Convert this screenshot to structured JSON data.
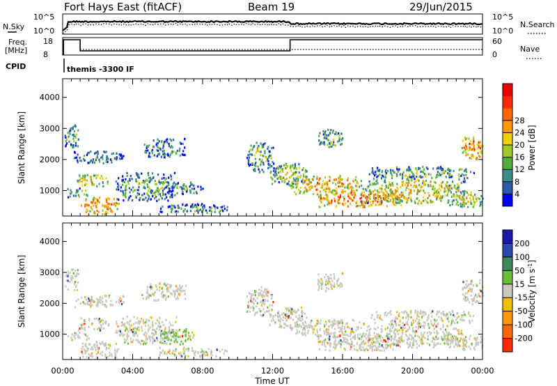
{
  "header": {
    "station": "Fort Hays East (fitACF)",
    "beam": "Beam 19",
    "date": "29/Jun/2015"
  },
  "status_panels": {
    "nsky_label": "N.Sky",
    "nsky_ticks": [
      "10^5",
      "10^0"
    ],
    "nsearch_label": "N.Search",
    "nsearch_right_ticks": [
      "10^5",
      "10^0"
    ],
    "freq_label": "Freq.",
    "freq_unit": "[MHz]",
    "freq_ticks": [
      "18",
      "8"
    ],
    "nave_label": "Nave",
    "nave_ticks": [
      "60",
      "0"
    ],
    "cpid_label": "CPID",
    "cpid_text": "themis -3300 IF"
  },
  "x_axis": {
    "ticks": [
      "00:00",
      "04:00",
      "08:00",
      "12:00",
      "16:00",
      "20:00",
      "00:00"
    ],
    "label": "Time UT"
  },
  "chart_data": [
    {
      "type": "heatmap",
      "name": "power-panel",
      "ylabel": "Slant Range [km]",
      "yticks": [
        1000,
        2000,
        3000,
        4000
      ],
      "ylim": [
        180,
        4600
      ],
      "xlim_hours": [
        0,
        24
      ],
      "colorbar_label": "Power [dB]",
      "colorbar_ticks": [
        4,
        8,
        12,
        16,
        20,
        24,
        28
      ],
      "colorbar_colors": [
        "#0000ff",
        "#2a5aa8",
        "#3e8c8c",
        "#4fae3e",
        "#9ecb2a",
        "#f0d000",
        "#ff9a00",
        "#ff6a00",
        "#ff2a00",
        "#e60000"
      ],
      "regions": [
        {
          "t0": 0.1,
          "t1": 0.9,
          "r0": 2400,
          "r1": 3150,
          "level": 0.35
        },
        {
          "t0": 0.6,
          "t1": 3.5,
          "r0": 1900,
          "r1": 2300,
          "level": 0.3
        },
        {
          "t0": 0.8,
          "t1": 2.6,
          "r0": 1150,
          "r1": 1550,
          "level": 0.55
        },
        {
          "t0": 0.2,
          "t1": 1.5,
          "r0": 800,
          "r1": 1100,
          "level": 0.4
        },
        {
          "t0": 1.0,
          "t1": 3.2,
          "r0": 250,
          "r1": 800,
          "level": 0.7
        },
        {
          "t0": 3.0,
          "t1": 6.5,
          "r0": 700,
          "r1": 1600,
          "level": 0.35
        },
        {
          "t0": 4.5,
          "t1": 7.0,
          "r0": 2100,
          "r1": 2700,
          "level": 0.3
        },
        {
          "t0": 6.0,
          "t1": 8.0,
          "r0": 900,
          "r1": 1300,
          "level": 0.3
        },
        {
          "t0": 5.5,
          "t1": 9.5,
          "r0": 300,
          "r1": 600,
          "level": 0.3
        },
        {
          "t0": 10.5,
          "t1": 12.0,
          "r0": 1600,
          "r1": 2600,
          "level": 0.4
        },
        {
          "t0": 11.8,
          "t1": 14.0,
          "r0": 1200,
          "r1": 1900,
          "level": 0.45
        },
        {
          "t0": 13.0,
          "t1": 17.0,
          "r0": 900,
          "r1": 1500,
          "level": 0.65
        },
        {
          "t0": 14.5,
          "t1": 19.5,
          "r0": 500,
          "r1": 1050,
          "level": 0.75
        },
        {
          "t0": 17.0,
          "t1": 23.0,
          "r0": 600,
          "r1": 1400,
          "level": 0.55
        },
        {
          "t0": 17.5,
          "t1": 23.5,
          "r0": 1400,
          "r1": 1800,
          "level": 0.4
        },
        {
          "t0": 22.8,
          "t1": 24.0,
          "r0": 2000,
          "r1": 2800,
          "level": 0.75
        },
        {
          "t0": 22.0,
          "t1": 24.0,
          "r0": 500,
          "r1": 1000,
          "level": 0.5
        },
        {
          "t0": 14.5,
          "t1": 16.0,
          "r0": 2400,
          "r1": 3000,
          "level": 0.35
        }
      ]
    },
    {
      "type": "heatmap",
      "name": "velocity-panel",
      "ylabel": "Slant Range [km]",
      "yticks": [
        1000,
        2000,
        3000,
        4000
      ],
      "ylim": [
        180,
        4600
      ],
      "xlim_hours": [
        0,
        24
      ],
      "colorbar_label": "Velocity [m s^-1]",
      "colorbar_ticks": [
        200,
        100,
        50,
        15,
        -15,
        -50,
        -100,
        -200
      ],
      "colorbar_colors": [
        "#1a1aa8",
        "#2a4ab0",
        "#3f8a5a",
        "#6abf3a",
        "#c8c8c0",
        "#f0c000",
        "#ff9a00",
        "#ff6a00",
        "#ff2a00"
      ],
      "regions": [
        {
          "t0": 0.1,
          "t1": 0.9,
          "r0": 2400,
          "r1": 3150,
          "level": 0.5
        },
        {
          "t0": 0.6,
          "t1": 3.5,
          "r0": 1900,
          "r1": 2300,
          "level": 0.5
        },
        {
          "t0": 0.8,
          "t1": 2.6,
          "r0": 1150,
          "r1": 1550,
          "level": 0.5
        },
        {
          "t0": 0.2,
          "t1": 1.5,
          "r0": 800,
          "r1": 1100,
          "level": 0.5
        },
        {
          "t0": 1.0,
          "t1": 3.2,
          "r0": 250,
          "r1": 800,
          "level": 0.5
        },
        {
          "t0": 3.0,
          "t1": 6.5,
          "r0": 700,
          "r1": 1600,
          "level": 0.5
        },
        {
          "t0": 4.5,
          "t1": 7.0,
          "r0": 2100,
          "r1": 2700,
          "level": 0.5
        },
        {
          "t0": 5.5,
          "t1": 7.5,
          "r0": 700,
          "r1": 1200,
          "level": 0.3
        },
        {
          "t0": 5.5,
          "t1": 9.5,
          "r0": 300,
          "r1": 600,
          "level": 0.5
        },
        {
          "t0": 10.5,
          "t1": 12.0,
          "r0": 1600,
          "r1": 2600,
          "level": 0.5
        },
        {
          "t0": 11.8,
          "t1": 14.0,
          "r0": 1200,
          "r1": 1900,
          "level": 0.5
        },
        {
          "t0": 13.0,
          "t1": 17.0,
          "r0": 900,
          "r1": 1500,
          "level": 0.5
        },
        {
          "t0": 14.5,
          "t1": 19.5,
          "r0": 500,
          "r1": 1050,
          "level": 0.5
        },
        {
          "t0": 17.0,
          "t1": 23.0,
          "r0": 600,
          "r1": 1400,
          "level": 0.5
        },
        {
          "t0": 17.5,
          "t1": 23.5,
          "r0": 1400,
          "r1": 1800,
          "level": 0.5
        },
        {
          "t0": 22.8,
          "t1": 24.0,
          "r0": 2000,
          "r1": 2800,
          "level": 0.5
        },
        {
          "t0": 22.0,
          "t1": 24.0,
          "r0": 500,
          "r1": 1000,
          "level": 0.5
        },
        {
          "t0": 14.5,
          "t1": 16.0,
          "r0": 2400,
          "r1": 3000,
          "level": 0.5
        }
      ]
    }
  ]
}
